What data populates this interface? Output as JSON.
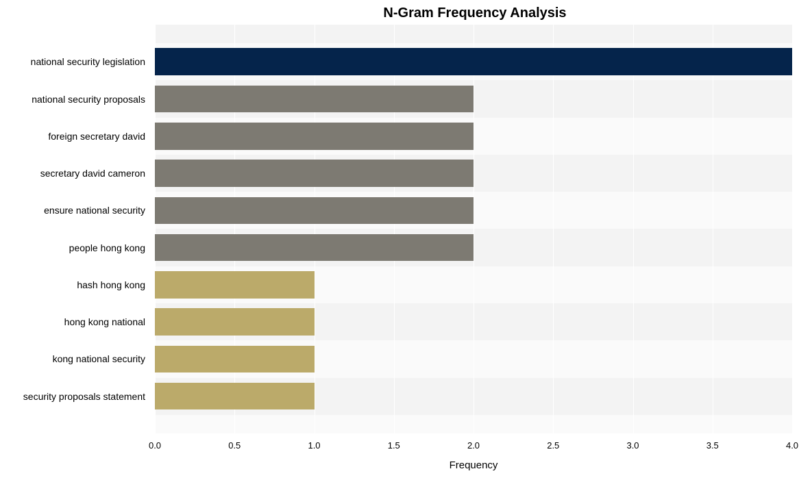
{
  "chart": {
    "type": "bar-horizontal",
    "title": "N-Gram Frequency Analysis",
    "title_fontsize": 20,
    "title_fontweight": 700,
    "xaxis_label": "Frequency",
    "xaxis_label_fontsize": 15,
    "tick_fontsize": 13,
    "ylabel_fontsize": 14,
    "background_color": "#ffffff",
    "stripe_colors": [
      "#f3f3f3",
      "#fafafa"
    ],
    "gridline_color": "#ffffff",
    "xlim": [
      0,
      4.0
    ],
    "xtick_step": 0.5,
    "bar_width_ratio": 0.73,
    "series": [
      {
        "label": "national security legislation",
        "value": 4,
        "color": "#05244b"
      },
      {
        "label": "national security proposals",
        "value": 2,
        "color": "#7d7a72"
      },
      {
        "label": "foreign secretary david",
        "value": 2,
        "color": "#7d7a72"
      },
      {
        "label": "secretary david cameron",
        "value": 2,
        "color": "#7d7a72"
      },
      {
        "label": "ensure national security",
        "value": 2,
        "color": "#7d7a72"
      },
      {
        "label": "people hong kong",
        "value": 2,
        "color": "#7d7a72"
      },
      {
        "label": "hash hong kong",
        "value": 1,
        "color": "#bbaa6a"
      },
      {
        "label": "hong kong national",
        "value": 1,
        "color": "#bbaa6a"
      },
      {
        "label": "kong national security",
        "value": 1,
        "color": "#bbaa6a"
      },
      {
        "label": "security proposals statement",
        "value": 1,
        "color": "#bbaa6a"
      }
    ]
  }
}
